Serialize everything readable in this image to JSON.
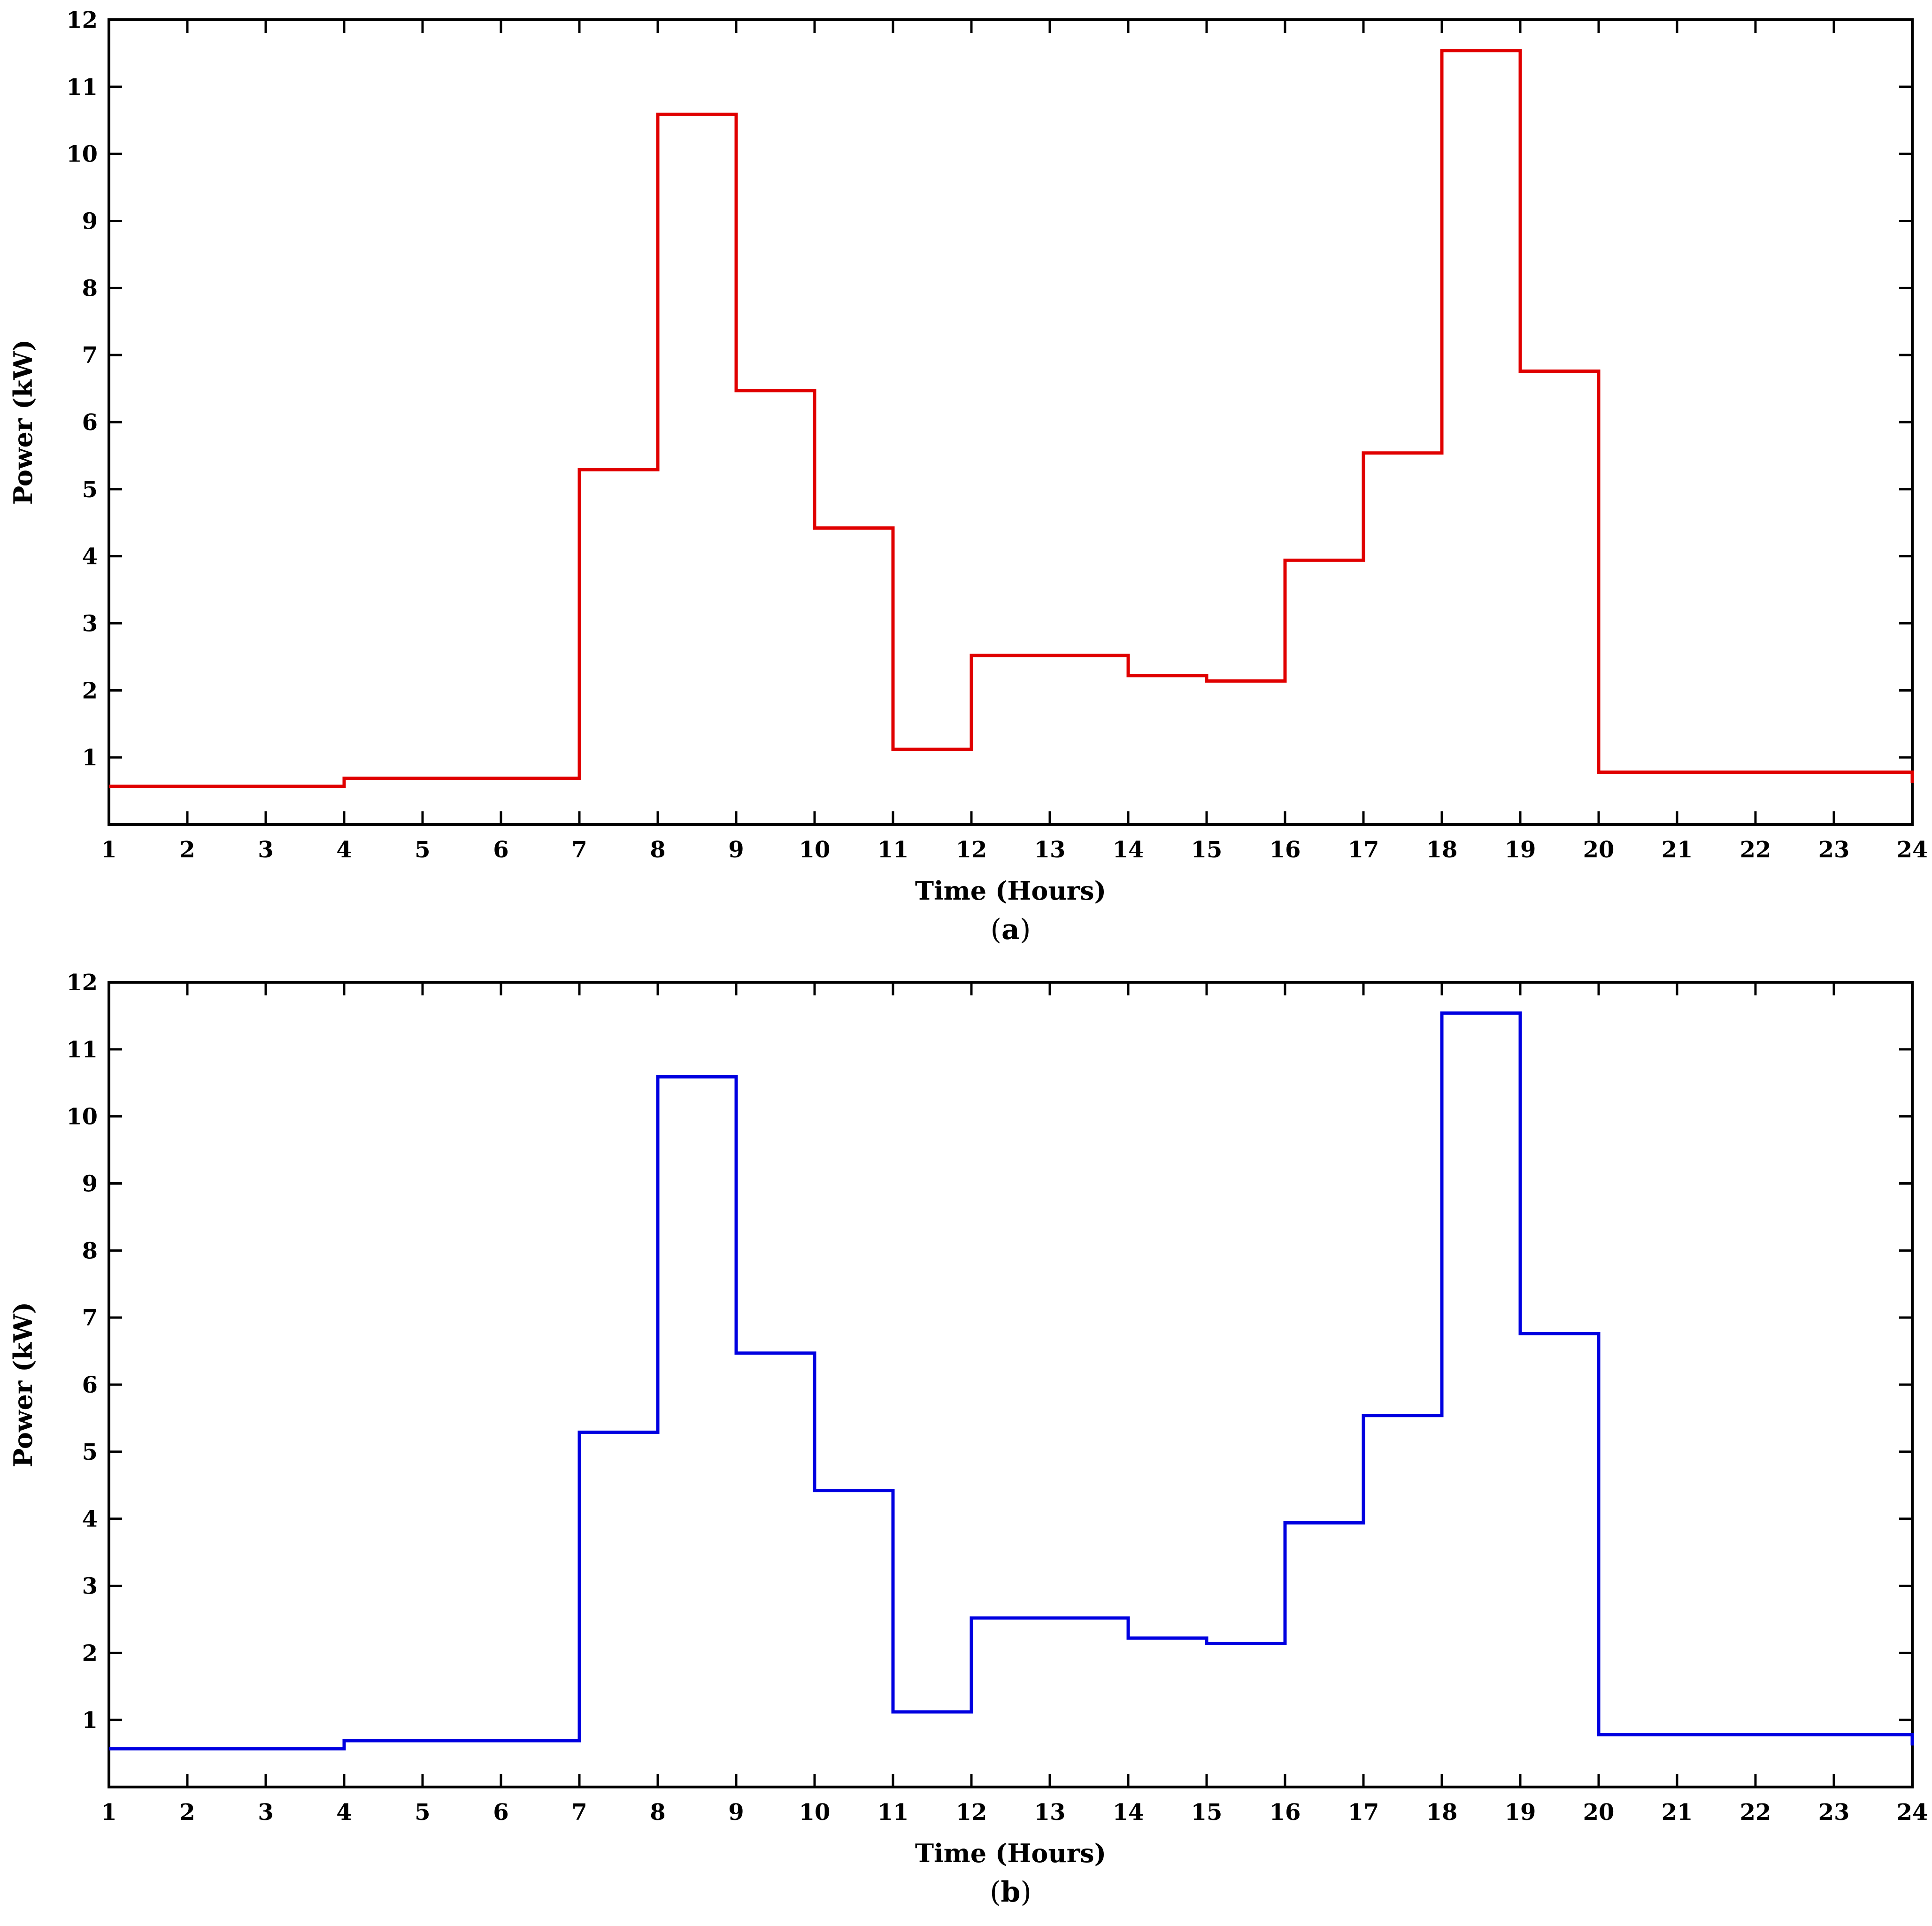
{
  "chart_data": [
    {
      "type": "line",
      "step": "post",
      "panel_label": "a",
      "xlabel": "Time (Hours)",
      "ylabel": "Power (kW)",
      "xlim": [
        1,
        24
      ],
      "ylim": [
        0,
        12
      ],
      "xticks": [
        1,
        2,
        3,
        4,
        5,
        6,
        7,
        8,
        9,
        10,
        11,
        12,
        13,
        14,
        15,
        16,
        17,
        18,
        19,
        20,
        21,
        22,
        23,
        24
      ],
      "yticks": [
        1,
        2,
        3,
        4,
        5,
        6,
        7,
        8,
        9,
        10,
        11,
        12
      ],
      "grid": false,
      "color": "#e00000",
      "x": [
        1,
        2,
        3,
        4,
        5,
        6,
        7,
        8,
        9,
        10,
        11,
        12,
        13,
        14,
        15,
        16,
        17,
        18,
        19,
        20,
        21,
        22,
        23,
        24
      ],
      "y": [
        0.57,
        0.57,
        0.57,
        0.69,
        0.69,
        0.69,
        5.29,
        10.59,
        6.47,
        4.42,
        1.12,
        2.52,
        2.52,
        2.22,
        2.14,
        3.94,
        5.54,
        11.54,
        6.76,
        0.78,
        0.78,
        0.78,
        0.78,
        0.62
      ]
    },
    {
      "type": "line",
      "step": "post",
      "panel_label": "b",
      "xlabel": "Time (Hours)",
      "ylabel": "Power (kW)",
      "xlim": [
        1,
        24
      ],
      "ylim": [
        0,
        12
      ],
      "xticks": [
        1,
        2,
        3,
        4,
        5,
        6,
        7,
        8,
        9,
        10,
        11,
        12,
        13,
        14,
        15,
        16,
        17,
        18,
        19,
        20,
        21,
        22,
        23,
        24
      ],
      "yticks": [
        1,
        2,
        3,
        4,
        5,
        6,
        7,
        8,
        9,
        10,
        11,
        12
      ],
      "grid": false,
      "color": "#0000e0",
      "x": [
        1,
        2,
        3,
        4,
        5,
        6,
        7,
        8,
        9,
        10,
        11,
        12,
        13,
        14,
        15,
        16,
        17,
        18,
        19,
        20,
        21,
        22,
        23,
        24
      ],
      "y": [
        0.57,
        0.57,
        0.57,
        0.69,
        0.69,
        0.69,
        5.29,
        10.59,
        6.47,
        4.42,
        1.12,
        2.52,
        2.52,
        2.22,
        2.14,
        3.94,
        5.54,
        11.54,
        6.76,
        0.78,
        0.78,
        0.78,
        0.78,
        0.62
      ]
    }
  ]
}
